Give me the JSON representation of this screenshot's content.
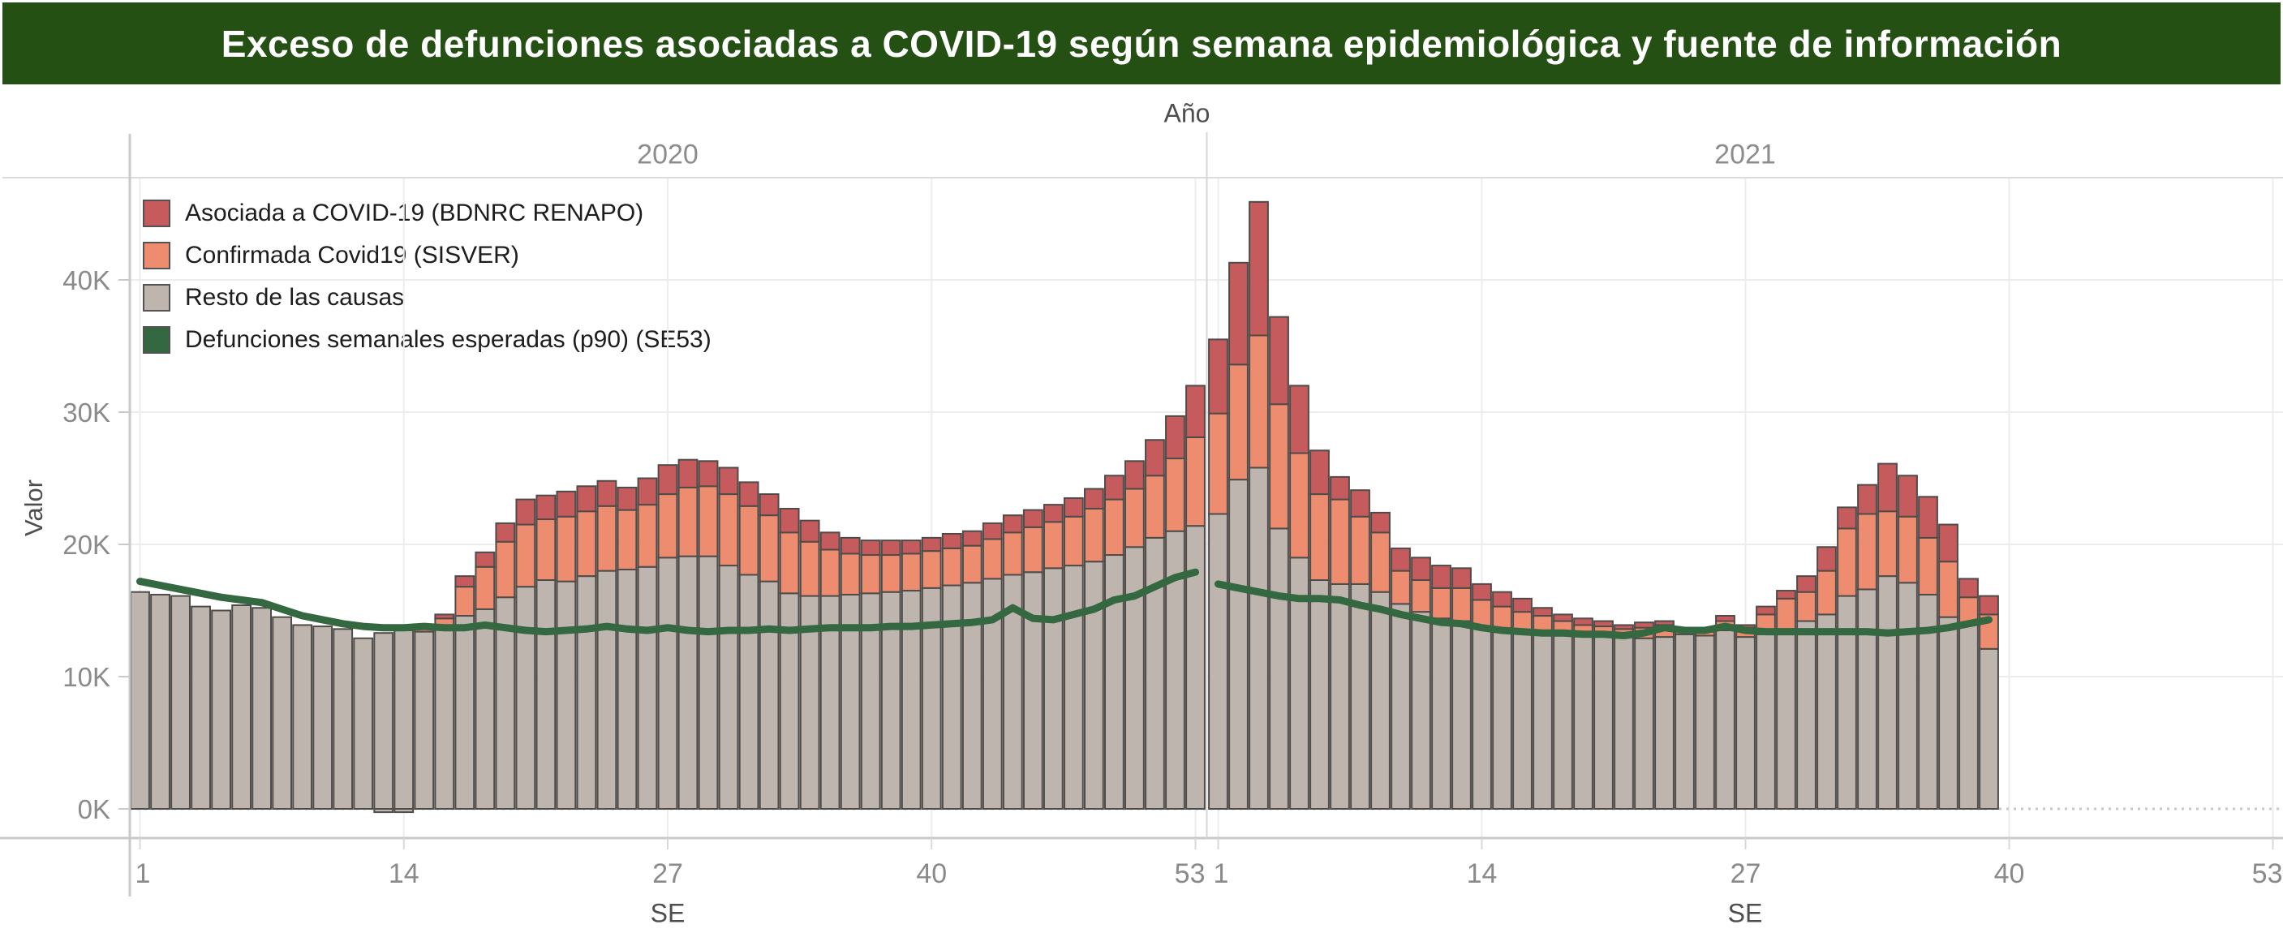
{
  "title": "Exceso de defunciones asociadas a COVID-19 según semana epidemiológica y fuente de información",
  "column_header": "Año",
  "x_axis_title": "SE",
  "y_axis_title": "Valor",
  "colors": {
    "banner_green": "#245013",
    "asociada_red": "#c65b5d",
    "confirmada_salmon": "#ee8c70",
    "resto_gray": "#bdb5ae",
    "esperadas_green": "#336840",
    "bar_stroke": "#4e4b48",
    "gridline": "#ededed",
    "frame": "#c9c9c9",
    "top_border": "#dcdcdc",
    "panel_divider": "#d6d6d6",
    "zero_dotted": "#c8c8c8",
    "tick_text": "#8a8a8a",
    "header_text": "#4e4e4e",
    "year_text": "#8c8c8c",
    "legend_text": "#1d1d1d"
  },
  "legend": [
    {
      "label": "Asociada a COVID-19 (BDNRC RENAPO)",
      "color": "#c65b5d",
      "type": "bar"
    },
    {
      "label": "Confirmada Covid19 (SISVER)",
      "color": "#ee8c70",
      "type": "bar"
    },
    {
      "label": "Resto de las causas",
      "color": "#bdb5ae",
      "type": "bar"
    },
    {
      "label": "Defunciones semanales esperadas (p90) (SE53)",
      "color": "#336840",
      "type": "line"
    }
  ],
  "axes": {
    "y_ticks": [
      {
        "label": "0K",
        "value": 0
      },
      {
        "label": "10K",
        "value": 10
      },
      {
        "label": "20K",
        "value": 20
      },
      {
        "label": "30K",
        "value": 30
      },
      {
        "label": "40K",
        "value": 40
      }
    ],
    "x_tick_weeks": [
      1,
      14,
      27,
      40,
      53
    ],
    "x_weeks_per_panel": 53
  },
  "chart_data": {
    "type": "bar",
    "stacked": true,
    "units": "thousands of deaths (K)",
    "title": "Exceso de defunciones asociadas a COVID-19 según semana epidemiológica y fuente de información",
    "xlabel": "SE",
    "ylabel": "Valor",
    "ylim": [
      0,
      47
    ],
    "grid": true,
    "legend_position": "top-left-inside",
    "series_names": [
      "Resto de las causas",
      "Confirmada Covid19 (SISVER)",
      "Asociada a COVID-19 (BDNRC RENAPO)",
      "Defunciones semanales esperadas (p90) (SE53)"
    ],
    "panels": [
      {
        "year": "2020",
        "weeks": 53,
        "resto": [
          16.4,
          16.2,
          16.1,
          15.3,
          15.0,
          15.4,
          15.2,
          14.5,
          13.9,
          13.8,
          13.6,
          12.9,
          13.3,
          13.5,
          13.4,
          13.6,
          14.6,
          15.1,
          16.0,
          16.8,
          17.3,
          17.2,
          17.6,
          18.0,
          18.1,
          18.3,
          19.0,
          19.1,
          19.1,
          18.4,
          17.7,
          17.2,
          16.3,
          16.1,
          16.1,
          16.2,
          16.3,
          16.4,
          16.5,
          16.7,
          16.9,
          17.1,
          17.4,
          17.7,
          17.9,
          18.2,
          18.4,
          18.7,
          19.2,
          19.8,
          20.5,
          21.0,
          21.4
        ],
        "confirmada": [
          0,
          0,
          0,
          0,
          0,
          0,
          0,
          0,
          0,
          0,
          0,
          0,
          0,
          0,
          0.2,
          0.8,
          2.2,
          3.2,
          4.2,
          4.7,
          4.6,
          4.9,
          4.9,
          4.9,
          4.5,
          4.7,
          4.8,
          5.2,
          5.3,
          5.4,
          5.2,
          5.0,
          4.6,
          4.1,
          3.5,
          3.1,
          2.9,
          2.8,
          2.8,
          2.8,
          2.8,
          2.8,
          3.0,
          3.2,
          3.4,
          3.5,
          3.7,
          4.0,
          4.2,
          4.4,
          4.7,
          5.5,
          6.7
        ],
        "asociada": [
          0,
          0,
          0,
          0,
          0,
          0,
          0,
          0,
          0,
          0,
          0,
          0,
          0,
          0,
          0.1,
          0.3,
          0.8,
          1.1,
          1.4,
          1.9,
          1.8,
          1.9,
          1.9,
          1.9,
          1.7,
          2.0,
          2.2,
          2.1,
          1.9,
          2.0,
          1.8,
          1.6,
          1.8,
          1.6,
          1.3,
          1.2,
          1.1,
          1.1,
          1.0,
          1.0,
          1.1,
          1.1,
          1.2,
          1.3,
          1.3,
          1.3,
          1.4,
          1.5,
          1.8,
          2.1,
          2.7,
          3.2,
          3.9
        ],
        "esperadas": [
          17.2,
          16.9,
          16.6,
          16.3,
          16.0,
          15.8,
          15.6,
          15.1,
          14.6,
          14.3,
          14.0,
          13.8,
          13.7,
          13.7,
          13.8,
          13.7,
          13.7,
          13.9,
          13.7,
          13.5,
          13.4,
          13.5,
          13.6,
          13.8,
          13.6,
          13.5,
          13.7,
          13.5,
          13.4,
          13.5,
          13.5,
          13.6,
          13.5,
          13.6,
          13.7,
          13.7,
          13.7,
          13.8,
          13.8,
          13.9,
          14.0,
          14.1,
          14.3,
          15.2,
          14.4,
          14.3,
          14.7,
          15.1,
          15.8,
          16.1,
          16.8,
          17.5,
          17.9
        ],
        "resto_negativos": [
          {
            "week": 13,
            "value": -0.25
          },
          {
            "week": 14,
            "value": -0.25
          }
        ]
      },
      {
        "year": "2021",
        "weeks": 39,
        "resto": [
          22.3,
          24.9,
          25.8,
          21.2,
          19.0,
          17.3,
          17.0,
          17.0,
          16.4,
          15.5,
          14.9,
          14.4,
          14.2,
          13.7,
          13.5,
          13.4,
          13.3,
          13.2,
          13.1,
          13.1,
          13.0,
          12.9,
          13.0,
          13.2,
          13.1,
          13.5,
          13.0,
          13.2,
          13.6,
          14.2,
          14.7,
          16.1,
          16.6,
          17.6,
          17.1,
          16.2,
          14.5,
          13.9,
          12.1
        ],
        "confirmada": [
          7.6,
          8.7,
          10.0,
          9.4,
          7.9,
          6.5,
          6.4,
          5.1,
          4.5,
          2.5,
          2.4,
          2.3,
          2.5,
          2.1,
          1.8,
          1.5,
          1.3,
          1.0,
          0.8,
          0.7,
          0.6,
          0.8,
          0.9,
          0.3,
          0.3,
          0.7,
          0.7,
          1.5,
          2.3,
          2.2,
          3.3,
          5.1,
          5.7,
          4.9,
          5.0,
          4.3,
          4.2,
          2.1,
          2.6
        ],
        "asociada": [
          5.6,
          7.7,
          10.1,
          6.6,
          5.1,
          3.3,
          1.7,
          2.0,
          1.5,
          1.7,
          1.7,
          1.7,
          1.5,
          1.2,
          1.1,
          1.0,
          0.6,
          0.5,
          0.5,
          0.4,
          0.3,
          0.4,
          0.3,
          0.2,
          0.2,
          0.4,
          0.2,
          0.6,
          0.6,
          1.2,
          1.8,
          1.6,
          2.2,
          3.6,
          3.1,
          3.1,
          2.8,
          1.4,
          1.4
        ],
        "esperadas": [
          17.0,
          16.7,
          16.4,
          16.1,
          15.9,
          15.9,
          15.8,
          15.4,
          15.1,
          14.7,
          14.4,
          14.1,
          14.0,
          13.7,
          13.5,
          13.4,
          13.3,
          13.3,
          13.2,
          13.2,
          13.1,
          13.3,
          13.7,
          13.5,
          13.5,
          13.8,
          13.5,
          13.4,
          13.4,
          13.4,
          13.4,
          13.4,
          13.4,
          13.3,
          13.4,
          13.5,
          13.7,
          14.0,
          14.3
        ],
        "resto_negativos": []
      }
    ]
  }
}
